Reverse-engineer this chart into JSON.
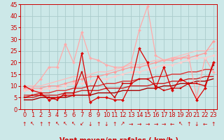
{
  "title": "",
  "background_color": "#cce8e8",
  "grid_color": "#aacccc",
  "xlim": [
    -0.5,
    23.5
  ],
  "ylim": [
    0,
    45
  ],
  "yticks": [
    0,
    5,
    10,
    15,
    20,
    25,
    30,
    35,
    40,
    45
  ],
  "xticks": [
    0,
    1,
    2,
    3,
    4,
    5,
    6,
    7,
    8,
    9,
    10,
    11,
    12,
    13,
    14,
    15,
    16,
    17,
    18,
    19,
    20,
    21,
    22,
    23
  ],
  "series": [
    {
      "x": [
        0,
        1,
        2,
        3,
        4,
        5,
        6,
        7,
        8,
        9,
        10,
        11,
        12,
        13,
        14,
        15,
        16,
        17,
        18,
        19,
        20,
        21,
        22,
        23
      ],
      "y": [
        10,
        8,
        7,
        4,
        5,
        6,
        6,
        24,
        3,
        5,
        5,
        4,
        4,
        11,
        26,
        20,
        9,
        18,
        8,
        13,
        11,
        4,
        9,
        20
      ],
      "color": "#dd0000",
      "lw": 0.9,
      "marker": "D",
      "ms": 2.0,
      "zorder": 5
    },
    {
      "x": [
        0,
        1,
        2,
        3,
        4,
        5,
        6,
        7,
        8,
        9,
        10,
        11,
        12,
        13,
        14,
        15,
        16,
        17,
        18,
        19,
        20,
        21,
        22,
        23
      ],
      "y": [
        5,
        6,
        6,
        5,
        4,
        7,
        7,
        16,
        6,
        14,
        9,
        5,
        11,
        11,
        13,
        13,
        10,
        8,
        9,
        9,
        11,
        11,
        10,
        19
      ],
      "color": "#cc0000",
      "lw": 0.9,
      "marker": "s",
      "ms": 2.0,
      "zorder": 5
    },
    {
      "x": [
        0,
        1,
        2,
        3,
        4,
        5,
        6,
        7,
        8,
        9,
        10,
        11,
        12,
        13,
        14,
        15,
        16,
        17,
        18,
        19,
        20,
        21,
        22,
        23
      ],
      "y": [
        4,
        4,
        5,
        5,
        5,
        5,
        6,
        6,
        6,
        7,
        7,
        7,
        8,
        8,
        8,
        9,
        9,
        10,
        10,
        11,
        11,
        12,
        12,
        13
      ],
      "color": "#aa0000",
      "lw": 1.0,
      "marker": null,
      "ms": 0,
      "zorder": 3
    },
    {
      "x": [
        0,
        1,
        2,
        3,
        4,
        5,
        6,
        7,
        8,
        9,
        10,
        11,
        12,
        13,
        14,
        15,
        16,
        17,
        18,
        19,
        20,
        21,
        22,
        23
      ],
      "y": [
        5,
        5,
        6,
        6,
        6,
        7,
        7,
        8,
        8,
        8,
        9,
        9,
        9,
        10,
        10,
        10,
        11,
        11,
        12,
        12,
        13,
        13,
        14,
        14
      ],
      "color": "#cc2222",
      "lw": 1.0,
      "marker": null,
      "ms": 0,
      "zorder": 3
    },
    {
      "x": [
        0,
        1,
        2,
        3,
        4,
        5,
        6,
        7,
        8,
        9,
        10,
        11,
        12,
        13,
        14,
        15,
        16,
        17,
        18,
        19,
        20,
        21,
        22,
        23
      ],
      "y": [
        6,
        6,
        7,
        7,
        8,
        8,
        9,
        9,
        10,
        10,
        11,
        11,
        12,
        12,
        13,
        13,
        14,
        14,
        15,
        15,
        16,
        16,
        17,
        17
      ],
      "color": "#dd3333",
      "lw": 1.0,
      "marker": null,
      "ms": 0,
      "zorder": 3
    },
    {
      "x": [
        0,
        1,
        2,
        3,
        4,
        5,
        6,
        7,
        8,
        9,
        10,
        11,
        12,
        13,
        14,
        15,
        16,
        17,
        18,
        19,
        20,
        21,
        22,
        23
      ],
      "y": [
        9,
        9,
        9,
        10,
        10,
        11,
        12,
        13,
        14,
        14,
        15,
        16,
        17,
        18,
        18,
        19,
        20,
        21,
        21,
        22,
        22,
        23,
        24,
        29
      ],
      "color": "#ff9999",
      "lw": 0.9,
      "marker": "D",
      "ms": 2.0,
      "zorder": 4
    },
    {
      "x": [
        0,
        1,
        2,
        3,
        4,
        5,
        6,
        7,
        8,
        9,
        10,
        11,
        12,
        13,
        14,
        15,
        16,
        17,
        18,
        19,
        20,
        21,
        22,
        23
      ],
      "y": [
        8,
        9,
        13,
        18,
        18,
        28,
        20,
        33,
        22,
        21,
        19,
        18,
        18,
        20,
        34,
        44,
        23,
        21,
        22,
        22,
        23,
        5,
        22,
        16
      ],
      "color": "#ffaaaa",
      "lw": 0.9,
      "marker": "D",
      "ms": 2.0,
      "zorder": 4
    },
    {
      "x": [
        0,
        1,
        2,
        3,
        4,
        5,
        6,
        7,
        8,
        9,
        10,
        11,
        12,
        13,
        14,
        15,
        16,
        17,
        18,
        19,
        20,
        21,
        22,
        23
      ],
      "y": [
        10,
        10,
        10,
        11,
        12,
        13,
        14,
        14,
        15,
        16,
        16,
        17,
        18,
        19,
        19,
        20,
        21,
        21,
        22,
        23,
        24,
        25,
        25,
        26
      ],
      "color": "#ffbbbb",
      "lw": 0.9,
      "marker": null,
      "ms": 0,
      "zorder": 3
    },
    {
      "x": [
        0,
        1,
        2,
        3,
        4,
        5,
        6,
        7,
        8,
        9,
        10,
        11,
        12,
        13,
        14,
        15,
        16,
        17,
        18,
        19,
        20,
        21,
        22,
        23
      ],
      "y": [
        8,
        8,
        8,
        9,
        9,
        10,
        11,
        11,
        12,
        13,
        13,
        14,
        15,
        16,
        16,
        17,
        18,
        19,
        19,
        20,
        21,
        22,
        22,
        23
      ],
      "color": "#ffcccc",
      "lw": 0.9,
      "marker": "D",
      "ms": 2.0,
      "zorder": 4
    }
  ],
  "arrows": [
    "↑",
    "↖",
    "↑",
    "↑",
    "↖",
    "↖",
    "↖",
    "↙",
    "↓",
    "↑",
    "↓",
    "↑",
    "↗",
    "→",
    "→",
    "→",
    "→",
    "→",
    "←",
    "↖",
    "↑",
    "↓",
    "←",
    "↑"
  ],
  "xlabel_color": "#cc0000",
  "xlabel_fontsize": 7,
  "tick_fontsize": 6,
  "tick_color": "#cc0000",
  "spine_color": "#cc0000"
}
